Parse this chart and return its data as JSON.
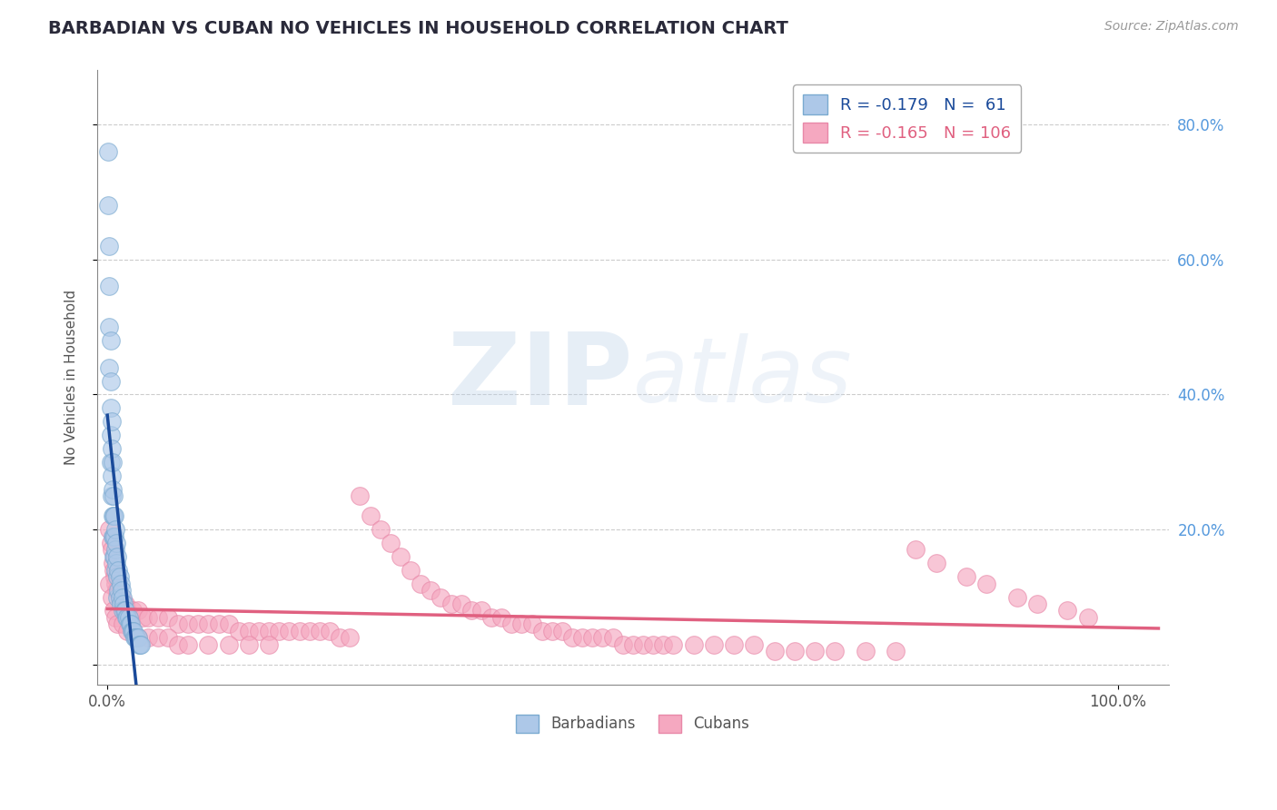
{
  "title": "BARBADIAN VS CUBAN NO VEHICLES IN HOUSEHOLD CORRELATION CHART",
  "source": "Source: ZipAtlas.com",
  "ylabel": "No Vehicles in Household",
  "x_tick_positions": [
    0.0,
    1.0
  ],
  "x_tick_labels": [
    "0.0%",
    "100.0%"
  ],
  "right_y_ticks": [
    0.0,
    0.2,
    0.4,
    0.6,
    0.8
  ],
  "right_y_tick_labels": [
    "",
    "20.0%",
    "40.0%",
    "60.0%",
    "80.0%"
  ],
  "xlim": [
    -0.01,
    1.05
  ],
  "ylim": [
    -0.03,
    0.88
  ],
  "barbadian_color": "#adc8e8",
  "cuban_color": "#f5a8c0",
  "barbadian_edge_color": "#7aaad0",
  "cuban_edge_color": "#e888a8",
  "barbadian_line_color": "#1a4a9a",
  "cuban_line_color": "#e06080",
  "barbadian_R": -0.179,
  "barbadian_N": 61,
  "cuban_R": -0.165,
  "cuban_N": 106,
  "legend_label_barbadians": "Barbadians",
  "legend_label_cubans": "Cubans",
  "watermark_zip": "ZIP",
  "watermark_atlas": "atlas",
  "background_color": "#ffffff",
  "grid_color": "#cccccc",
  "title_color": "#2a2a3a",
  "barbadian_x": [
    0.001,
    0.001,
    0.002,
    0.002,
    0.002,
    0.002,
    0.003,
    0.003,
    0.003,
    0.003,
    0.003,
    0.004,
    0.004,
    0.004,
    0.004,
    0.005,
    0.005,
    0.005,
    0.005,
    0.006,
    0.006,
    0.006,
    0.006,
    0.007,
    0.007,
    0.007,
    0.008,
    0.008,
    0.008,
    0.009,
    0.009,
    0.01,
    0.01,
    0.01,
    0.011,
    0.011,
    0.012,
    0.012,
    0.013,
    0.013,
    0.014,
    0.015,
    0.015,
    0.016,
    0.017,
    0.018,
    0.019,
    0.02,
    0.021,
    0.022,
    0.023,
    0.024,
    0.025,
    0.026,
    0.027,
    0.028,
    0.029,
    0.03,
    0.031,
    0.032,
    0.033
  ],
  "barbadian_y": [
    0.76,
    0.68,
    0.62,
    0.56,
    0.5,
    0.44,
    0.48,
    0.42,
    0.38,
    0.34,
    0.3,
    0.36,
    0.32,
    0.28,
    0.25,
    0.3,
    0.26,
    0.22,
    0.19,
    0.25,
    0.22,
    0.19,
    0.16,
    0.22,
    0.19,
    0.16,
    0.2,
    0.17,
    0.14,
    0.18,
    0.15,
    0.16,
    0.13,
    0.1,
    0.14,
    0.11,
    0.13,
    0.1,
    0.12,
    0.09,
    0.11,
    0.1,
    0.08,
    0.09,
    0.08,
    0.08,
    0.07,
    0.07,
    0.07,
    0.06,
    0.06,
    0.05,
    0.05,
    0.05,
    0.04,
    0.04,
    0.04,
    0.04,
    0.03,
    0.03,
    0.03
  ],
  "cuban_x": [
    0.002,
    0.003,
    0.004,
    0.005,
    0.006,
    0.007,
    0.008,
    0.009,
    0.01,
    0.012,
    0.014,
    0.016,
    0.018,
    0.02,
    0.025,
    0.03,
    0.035,
    0.04,
    0.05,
    0.06,
    0.07,
    0.08,
    0.09,
    0.1,
    0.11,
    0.12,
    0.13,
    0.14,
    0.15,
    0.16,
    0.17,
    0.18,
    0.19,
    0.2,
    0.21,
    0.22,
    0.23,
    0.24,
    0.25,
    0.26,
    0.27,
    0.28,
    0.29,
    0.3,
    0.31,
    0.32,
    0.33,
    0.34,
    0.35,
    0.36,
    0.37,
    0.38,
    0.39,
    0.4,
    0.41,
    0.42,
    0.43,
    0.44,
    0.45,
    0.46,
    0.47,
    0.48,
    0.49,
    0.5,
    0.51,
    0.52,
    0.53,
    0.54,
    0.55,
    0.56,
    0.58,
    0.6,
    0.62,
    0.64,
    0.66,
    0.68,
    0.7,
    0.72,
    0.75,
    0.78,
    0.8,
    0.82,
    0.85,
    0.87,
    0.9,
    0.92,
    0.95,
    0.97,
    0.002,
    0.004,
    0.006,
    0.008,
    0.01,
    0.015,
    0.02,
    0.025,
    0.03,
    0.04,
    0.05,
    0.06,
    0.07,
    0.08,
    0.1,
    0.12,
    0.14,
    0.16
  ],
  "cuban_y": [
    0.2,
    0.18,
    0.17,
    0.15,
    0.14,
    0.13,
    0.12,
    0.11,
    0.11,
    0.1,
    0.1,
    0.09,
    0.09,
    0.08,
    0.08,
    0.08,
    0.07,
    0.07,
    0.07,
    0.07,
    0.06,
    0.06,
    0.06,
    0.06,
    0.06,
    0.06,
    0.05,
    0.05,
    0.05,
    0.05,
    0.05,
    0.05,
    0.05,
    0.05,
    0.05,
    0.05,
    0.04,
    0.04,
    0.25,
    0.22,
    0.2,
    0.18,
    0.16,
    0.14,
    0.12,
    0.11,
    0.1,
    0.09,
    0.09,
    0.08,
    0.08,
    0.07,
    0.07,
    0.06,
    0.06,
    0.06,
    0.05,
    0.05,
    0.05,
    0.04,
    0.04,
    0.04,
    0.04,
    0.04,
    0.03,
    0.03,
    0.03,
    0.03,
    0.03,
    0.03,
    0.03,
    0.03,
    0.03,
    0.03,
    0.02,
    0.02,
    0.02,
    0.02,
    0.02,
    0.02,
    0.17,
    0.15,
    0.13,
    0.12,
    0.1,
    0.09,
    0.08,
    0.07,
    0.12,
    0.1,
    0.08,
    0.07,
    0.06,
    0.06,
    0.05,
    0.05,
    0.04,
    0.04,
    0.04,
    0.04,
    0.03,
    0.03,
    0.03,
    0.03,
    0.03,
    0.03
  ]
}
